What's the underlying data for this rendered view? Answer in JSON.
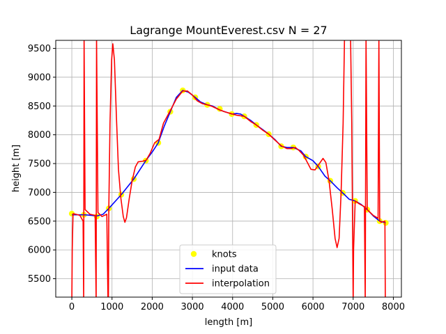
{
  "chart_data": {
    "type": "line",
    "title": "Lagrange MountEverest.csv N = 27",
    "xlabel": "length [m]",
    "ylabel": "height [m]",
    "xlim": [
      -400,
      8200
    ],
    "ylim": [
      5180,
      9640
    ],
    "x_ticks": [
      0,
      1000,
      2000,
      3000,
      4000,
      5000,
      6000,
      7000,
      8000
    ],
    "y_ticks": [
      5500,
      6000,
      6500,
      7000,
      7500,
      8000,
      8500,
      9000,
      9500
    ],
    "grid": true,
    "legend_position": "lower center",
    "colors": {
      "knots": "#ffff00",
      "input": "#0000ff",
      "interp": "#ff0000"
    },
    "series": [
      {
        "name": "knots",
        "style": "markers",
        "points": [
          [
            0,
            6630
          ],
          [
            300,
            6610
          ],
          [
            620,
            6580
          ],
          [
            920,
            6720
          ],
          [
            1230,
            6960
          ],
          [
            1540,
            7230
          ],
          [
            1840,
            7550
          ],
          [
            2150,
            7860
          ],
          [
            2450,
            8400
          ],
          [
            2760,
            8770
          ],
          [
            3070,
            8650
          ],
          [
            3370,
            8520
          ],
          [
            3680,
            8450
          ],
          [
            3980,
            8360
          ],
          [
            4290,
            8320
          ],
          [
            4590,
            8170
          ],
          [
            4900,
            8010
          ],
          [
            5210,
            7800
          ],
          [
            5510,
            7780
          ],
          [
            5820,
            7620
          ],
          [
            6130,
            7450
          ],
          [
            6430,
            7200
          ],
          [
            6740,
            6990
          ],
          [
            7050,
            6850
          ],
          [
            7350,
            6700
          ],
          [
            7660,
            6500
          ],
          [
            7810,
            6470
          ]
        ]
      },
      {
        "name": "input data",
        "style": "line",
        "points": [
          [
            0,
            6610
          ],
          [
            300,
            6610
          ],
          [
            500,
            6600
          ],
          [
            620,
            6590
          ],
          [
            780,
            6620
          ],
          [
            920,
            6720
          ],
          [
            1230,
            6960
          ],
          [
            1540,
            7230
          ],
          [
            1840,
            7550
          ],
          [
            2000,
            7700
          ],
          [
            2150,
            7860
          ],
          [
            2300,
            8150
          ],
          [
            2450,
            8400
          ],
          [
            2600,
            8650
          ],
          [
            2760,
            8770
          ],
          [
            2900,
            8740
          ],
          [
            3070,
            8650
          ],
          [
            3200,
            8570
          ],
          [
            3370,
            8520
          ],
          [
            3500,
            8500
          ],
          [
            3680,
            8430
          ],
          [
            3850,
            8390
          ],
          [
            3980,
            8360
          ],
          [
            4100,
            8370
          ],
          [
            4200,
            8360
          ],
          [
            4290,
            8320
          ],
          [
            4450,
            8250
          ],
          [
            4590,
            8170
          ],
          [
            4750,
            8090
          ],
          [
            4900,
            8010
          ],
          [
            5050,
            7920
          ],
          [
            5210,
            7800
          ],
          [
            5350,
            7780
          ],
          [
            5510,
            7780
          ],
          [
            5700,
            7720
          ],
          [
            5820,
            7620
          ],
          [
            6000,
            7550
          ],
          [
            6130,
            7450
          ],
          [
            6300,
            7280
          ],
          [
            6430,
            7200
          ],
          [
            6600,
            7080
          ],
          [
            6740,
            6990
          ],
          [
            6900,
            6880
          ],
          [
            7050,
            6850
          ],
          [
            7200,
            6790
          ],
          [
            7350,
            6700
          ],
          [
            7500,
            6590
          ],
          [
            7660,
            6500
          ],
          [
            7810,
            6470
          ]
        ]
      },
      {
        "name": "interpolation",
        "style": "line",
        "points": [
          [
            0,
            5100
          ],
          [
            10,
            6000
          ],
          [
            30,
            6630
          ],
          [
            100,
            6620
          ],
          [
            200,
            6600
          ],
          [
            280,
            6500
          ],
          [
            295,
            5100
          ],
          [
            305,
            9700
          ],
          [
            330,
            6700
          ],
          [
            450,
            6620
          ],
          [
            580,
            6600
          ],
          [
            605,
            5100
          ],
          [
            615,
            9700
          ],
          [
            650,
            6650
          ],
          [
            750,
            6580
          ],
          [
            870,
            6620
          ],
          [
            900,
            5100
          ],
          [
            910,
            5100
          ],
          [
            920,
            6700
          ],
          [
            950,
            8200
          ],
          [
            990,
            9300
          ],
          [
            1020,
            9580
          ],
          [
            1060,
            9300
          ],
          [
            1110,
            8300
          ],
          [
            1160,
            7400
          ],
          [
            1220,
            6900
          ],
          [
            1280,
            6580
          ],
          [
            1320,
            6480
          ],
          [
            1360,
            6560
          ],
          [
            1430,
            6900
          ],
          [
            1500,
            7200
          ],
          [
            1580,
            7440
          ],
          [
            1650,
            7530
          ],
          [
            1760,
            7540
          ],
          [
            1850,
            7560
          ],
          [
            1950,
            7680
          ],
          [
            2060,
            7860
          ],
          [
            2170,
            7920
          ],
          [
            2280,
            8200
          ],
          [
            2450,
            8420
          ],
          [
            2600,
            8620
          ],
          [
            2760,
            8760
          ],
          [
            2880,
            8760
          ],
          [
            3000,
            8690
          ],
          [
            3120,
            8590
          ],
          [
            3250,
            8540
          ],
          [
            3370,
            8520
          ],
          [
            3500,
            8490
          ],
          [
            3650,
            8440
          ],
          [
            3800,
            8400
          ],
          [
            3950,
            8370
          ],
          [
            4100,
            8340
          ],
          [
            4290,
            8320
          ],
          [
            4450,
            8230
          ],
          [
            4590,
            8170
          ],
          [
            4750,
            8080
          ],
          [
            4900,
            8010
          ],
          [
            5050,
            7910
          ],
          [
            5210,
            7810
          ],
          [
            5350,
            7760
          ],
          [
            5450,
            7760
          ],
          [
            5560,
            7780
          ],
          [
            5650,
            7730
          ],
          [
            5760,
            7650
          ],
          [
            5860,
            7520
          ],
          [
            5950,
            7400
          ],
          [
            6050,
            7390
          ],
          [
            6180,
            7520
          ],
          [
            6250,
            7590
          ],
          [
            6320,
            7520
          ],
          [
            6400,
            7200
          ],
          [
            6480,
            6700
          ],
          [
            6550,
            6200
          ],
          [
            6600,
            6040
          ],
          [
            6650,
            6200
          ],
          [
            6700,
            7000
          ],
          [
            6750,
            8200
          ],
          [
            6785,
            9700
          ],
          [
            6900,
            9700
          ],
          [
            6935,
            9700
          ],
          [
            6965,
            8200
          ],
          [
            7000,
            5100
          ],
          [
            7010,
            6000
          ],
          [
            7050,
            6850
          ],
          [
            7150,
            6800
          ],
          [
            7280,
            6750
          ],
          [
            7300,
            5100
          ],
          [
            7320,
            9700
          ],
          [
            7350,
            6700
          ],
          [
            7500,
            6600
          ],
          [
            7620,
            6550
          ],
          [
            7640,
            9700
          ],
          [
            7660,
            6500
          ],
          [
            7700,
            6480
          ],
          [
            7790,
            6500
          ],
          [
            7800,
            5100
          ]
        ]
      }
    ]
  }
}
